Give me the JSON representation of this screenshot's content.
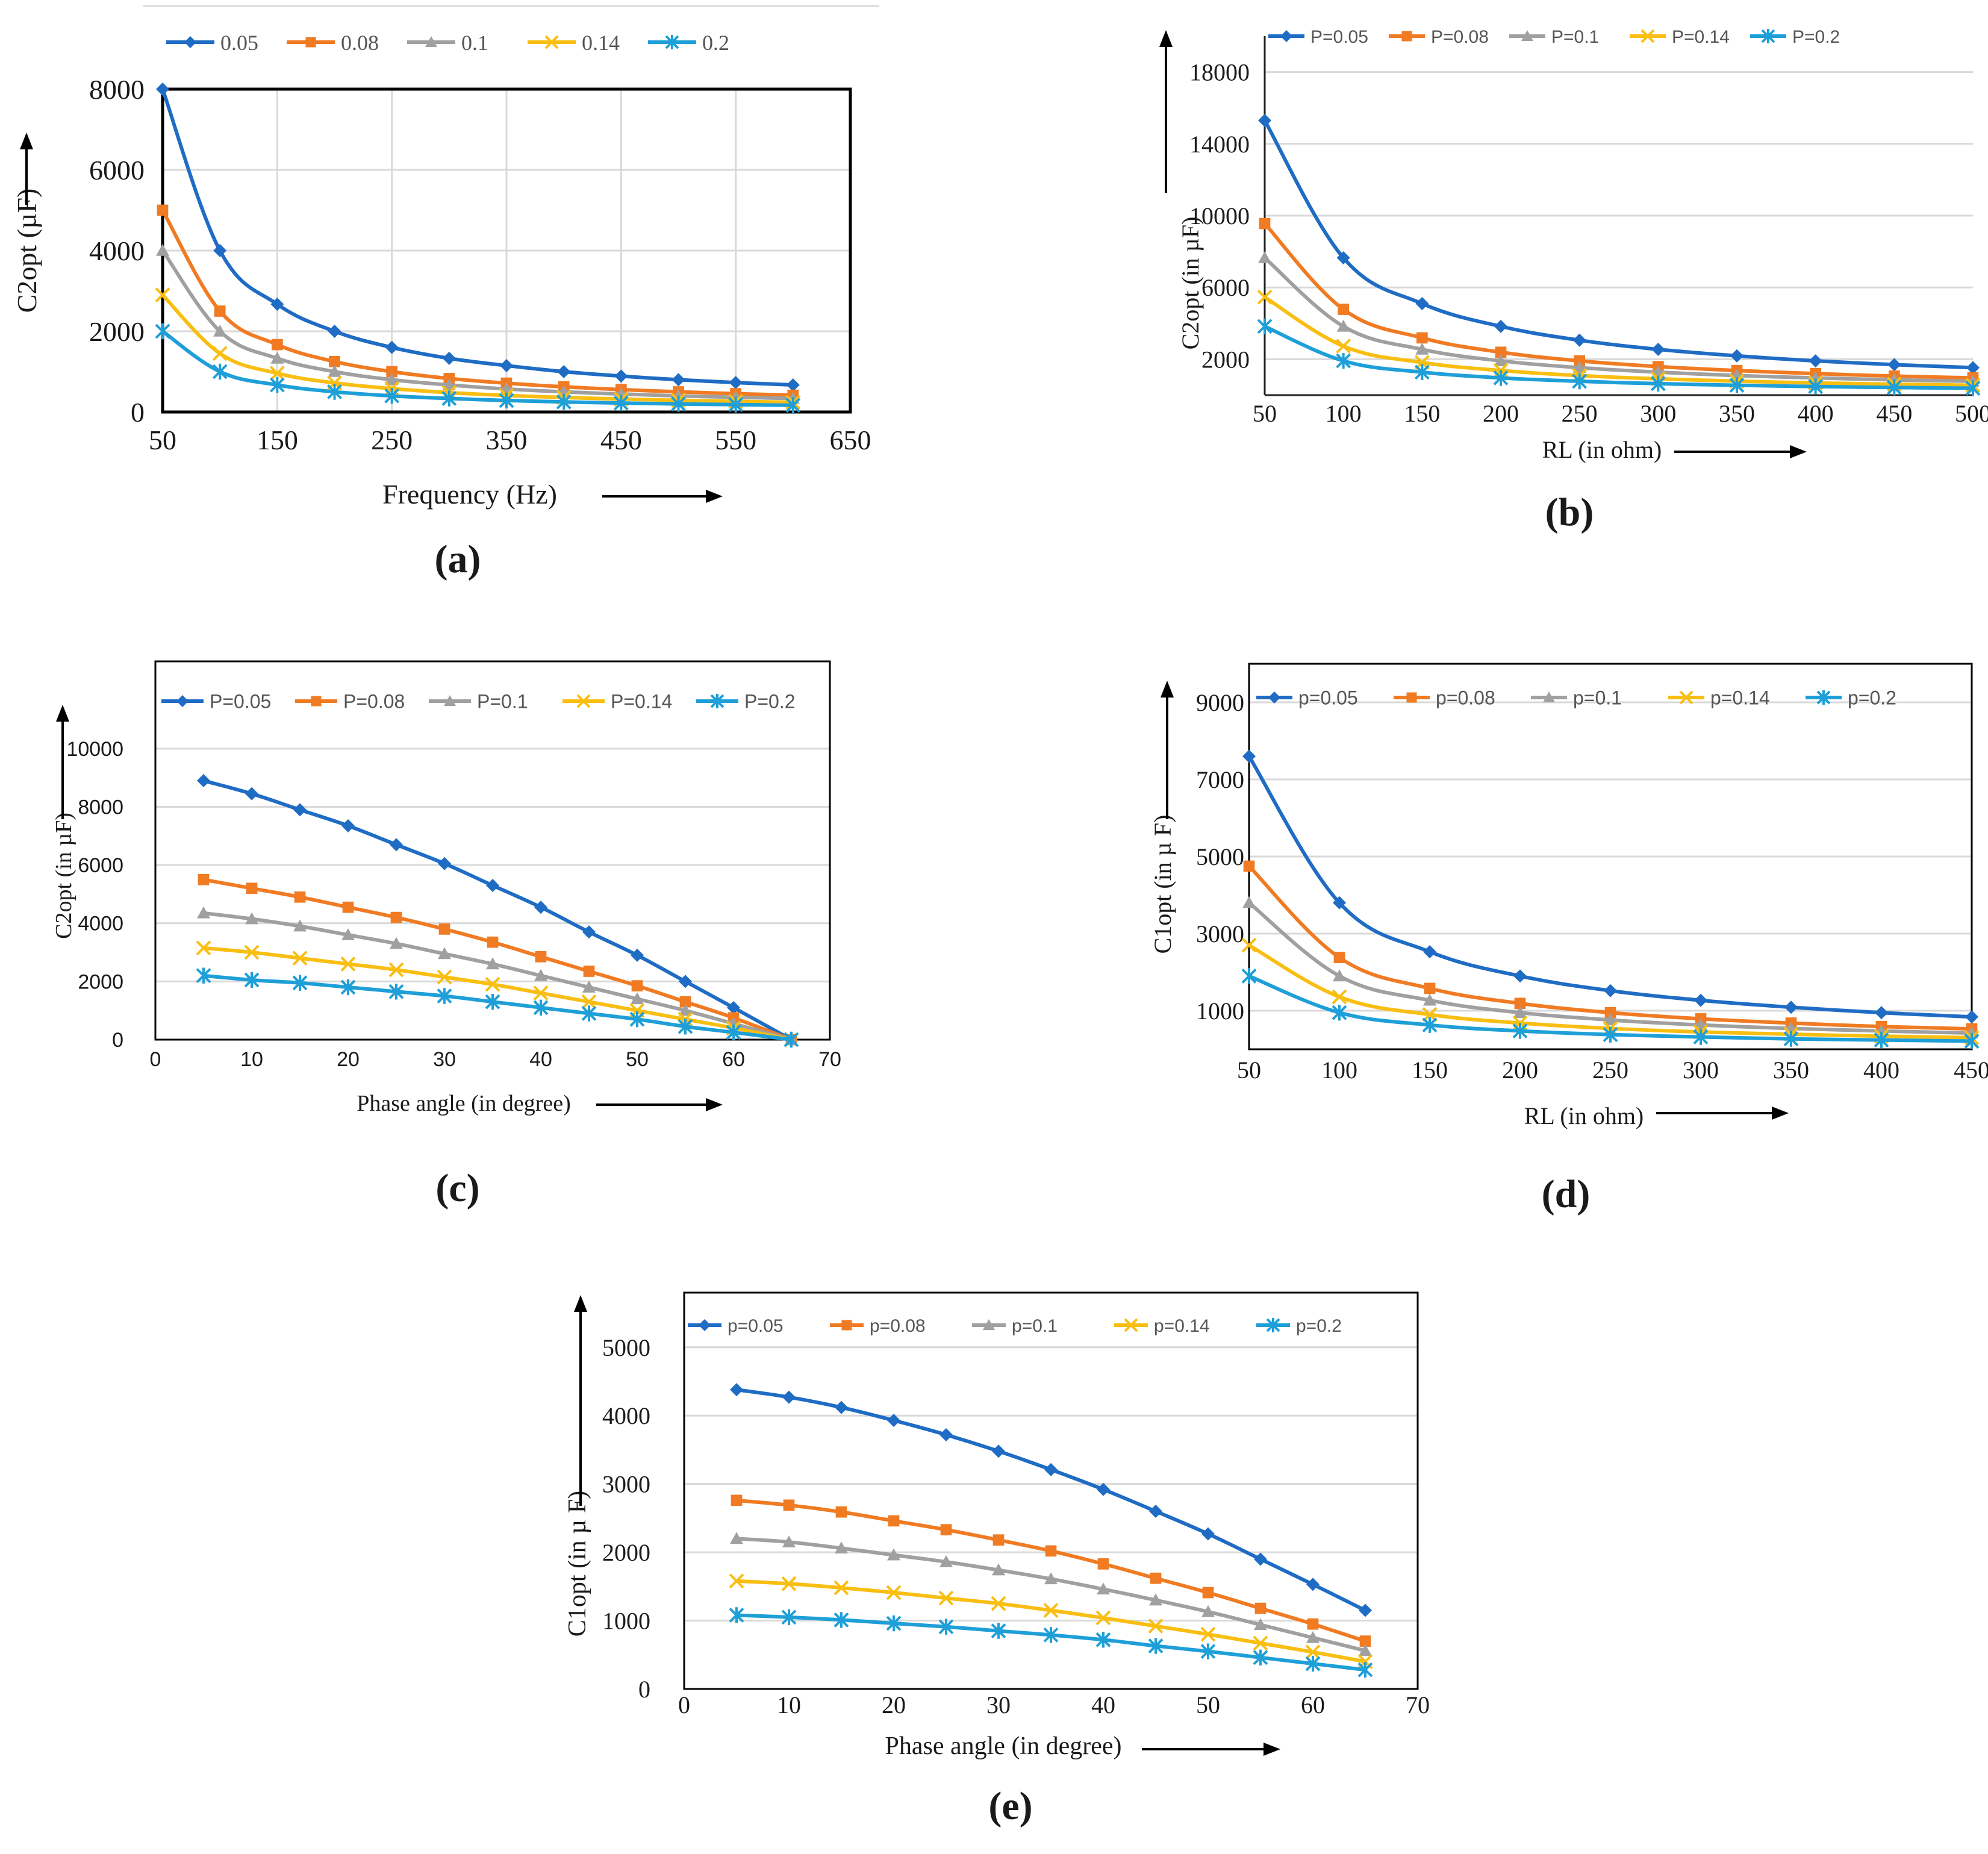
{
  "colors": {
    "s1": "#1F6CC4",
    "s2": "#F07B23",
    "s3": "#A0A0A0",
    "s4": "#F9BE12",
    "s5": "#1E9FD8",
    "grid": "#d9d9d9",
    "text": "#1a1a1a"
  },
  "chart_data": [
    {
      "id": "a",
      "type": "line",
      "panel_label": "(a)",
      "title": "",
      "xlabel": "Frequency (Hz)",
      "ylabel": "C2opt (µF)",
      "x_ticks": [
        "50",
        "150",
        "250",
        "350",
        "450",
        "550",
        "650"
      ],
      "y_ticks": [
        "0",
        "2000",
        "4000",
        "6000",
        "8000"
      ],
      "xlim": [
        50,
        650
      ],
      "ylim": [
        0,
        8000
      ],
      "legend_position": "top",
      "x": [
        50,
        100,
        150,
        200,
        250,
        300,
        350,
        400,
        450,
        500,
        550,
        600
      ],
      "series": [
        {
          "name": "0.05",
          "marker": "diamond",
          "values": [
            8000,
            4000,
            2670,
            2000,
            1600,
            1330,
            1150,
            1000,
            890,
            800,
            730,
            670
          ]
        },
        {
          "name": "0.08",
          "marker": "square",
          "values": [
            5000,
            2500,
            1670,
            1250,
            1000,
            830,
            715,
            625,
            555,
            500,
            455,
            415
          ]
        },
        {
          "name": "0.1",
          "marker": "triangle",
          "values": [
            4000,
            2000,
            1330,
            1000,
            800,
            670,
            570,
            500,
            445,
            400,
            365,
            335
          ]
        },
        {
          "name": "0.14",
          "marker": "x",
          "values": [
            2900,
            1450,
            960,
            720,
            580,
            480,
            410,
            360,
            320,
            290,
            265,
            240
          ]
        },
        {
          "name": "0.2",
          "marker": "star",
          "values": [
            2000,
            1000,
            670,
            500,
            400,
            335,
            285,
            250,
            222,
            200,
            182,
            167
          ]
        }
      ]
    },
    {
      "id": "b",
      "type": "line",
      "panel_label": "(b)",
      "title": "",
      "xlabel": "RL (in ohm)",
      "ylabel": "C2opt (in µF)",
      "x_ticks": [
        "50",
        "100",
        "150",
        "200",
        "250",
        "300",
        "350",
        "400",
        "450",
        "500"
      ],
      "y_ticks": [
        "2000",
        "6000",
        "10000",
        "14000",
        "18000"
      ],
      "xlim": [
        50,
        500
      ],
      "ylim": [
        0,
        20000
      ],
      "legend_position": "top",
      "x": [
        50,
        100,
        150,
        200,
        250,
        300,
        350,
        400,
        450,
        500
      ],
      "series": [
        {
          "name": "P=0.05",
          "marker": "diamond",
          "values": [
            15300,
            7650,
            5100,
            3830,
            3060,
            2550,
            2190,
            1910,
            1700,
            1530
          ]
        },
        {
          "name": "P=0.08",
          "marker": "square",
          "values": [
            9560,
            4780,
            3190,
            2390,
            1910,
            1590,
            1370,
            1200,
            1060,
            960
          ]
        },
        {
          "name": "P=0.1",
          "marker": "triangle",
          "values": [
            7650,
            3830,
            2550,
            1910,
            1530,
            1280,
            1090,
            960,
            850,
            770
          ]
        },
        {
          "name": "P=0.14",
          "marker": "x",
          "values": [
            5460,
            2730,
            1820,
            1370,
            1090,
            910,
            780,
            680,
            610,
            550
          ]
        },
        {
          "name": "P=0.2",
          "marker": "star",
          "values": [
            3830,
            1910,
            1280,
            960,
            770,
            640,
            550,
            480,
            425,
            385
          ]
        }
      ]
    },
    {
      "id": "c",
      "type": "line",
      "panel_label": "(c)",
      "title": "",
      "xlabel": "Phase angle (in degree)",
      "ylabel": "C2opt (in µF)",
      "x_ticks": [
        "0",
        "10",
        "20",
        "30",
        "40",
        "50",
        "60",
        "70"
      ],
      "y_ticks": [
        "0",
        "2000",
        "4000",
        "6000",
        "8000",
        "10000"
      ],
      "xlim": [
        0,
        70
      ],
      "ylim": [
        0,
        13000
      ],
      "legend_position": "top",
      "x": [
        5,
        10,
        15,
        20,
        25,
        30,
        35,
        40,
        45,
        50,
        55,
        60,
        66
      ],
      "series": [
        {
          "name": "P=0.05",
          "marker": "diamond",
          "values": [
            8900,
            8450,
            7900,
            7350,
            6700,
            6050,
            5300,
            4550,
            3700,
            2900,
            2000,
            1100,
            0
          ]
        },
        {
          "name": "P=0.08",
          "marker": "square",
          "values": [
            5500,
            5200,
            4900,
            4550,
            4200,
            3800,
            3350,
            2850,
            2350,
            1850,
            1300,
            750,
            0
          ]
        },
        {
          "name": "P=0.1",
          "marker": "triangle",
          "values": [
            4350,
            4150,
            3900,
            3600,
            3300,
            2950,
            2600,
            2200,
            1800,
            1400,
            1000,
            550,
            0
          ]
        },
        {
          "name": "P=0.14",
          "marker": "x",
          "values": [
            3150,
            3000,
            2800,
            2600,
            2400,
            2150,
            1900,
            1600,
            1300,
            1000,
            700,
            400,
            0
          ]
        },
        {
          "name": "P=0.2",
          "marker": "star",
          "values": [
            2200,
            2050,
            1950,
            1800,
            1650,
            1500,
            1300,
            1100,
            900,
            700,
            450,
            250,
            0
          ]
        }
      ]
    },
    {
      "id": "d",
      "type": "line",
      "panel_label": "(d)",
      "title": "",
      "xlabel": "RL (in ohm)",
      "ylabel": "C1opt (in µ F)",
      "x_ticks": [
        "50",
        "100",
        "150",
        "200",
        "250",
        "300",
        "350",
        "400",
        "450"
      ],
      "y_ticks": [
        "1000",
        "3000",
        "5000",
        "7000",
        "9000"
      ],
      "xlim": [
        50,
        450
      ],
      "ylim": [
        0,
        10000
      ],
      "legend_position": "top",
      "x": [
        50,
        100,
        150,
        200,
        250,
        300,
        350,
        400,
        450
      ],
      "series": [
        {
          "name": "p=0.05",
          "marker": "diamond",
          "values": [
            7600,
            3800,
            2530,
            1900,
            1520,
            1270,
            1090,
            950,
            840
          ]
        },
        {
          "name": "p=0.08",
          "marker": "square",
          "values": [
            4750,
            2380,
            1580,
            1190,
            950,
            790,
            680,
            590,
            530
          ]
        },
        {
          "name": "p=0.1",
          "marker": "triangle",
          "values": [
            3800,
            1900,
            1270,
            950,
            760,
            630,
            540,
            475,
            420
          ]
        },
        {
          "name": "p=0.14",
          "marker": "x",
          "values": [
            2700,
            1360,
            900,
            680,
            540,
            450,
            390,
            340,
            300
          ]
        },
        {
          "name": "p=0.2",
          "marker": "star",
          "values": [
            1900,
            950,
            630,
            475,
            380,
            320,
            270,
            240,
            210
          ]
        }
      ]
    },
    {
      "id": "e",
      "type": "line",
      "panel_label": "(e)",
      "title": "",
      "xlabel": "Phase angle (in degree)",
      "ylabel": "C1opt (in µ F)",
      "x_ticks": [
        "0",
        "10",
        "20",
        "30",
        "40",
        "50",
        "60",
        "70"
      ],
      "y_ticks": [
        "0",
        "1000",
        "2000",
        "3000",
        "4000",
        "5000"
      ],
      "xlim": [
        0,
        70
      ],
      "ylim": [
        0,
        5800
      ],
      "legend_position": "top",
      "x": [
        5,
        10,
        15,
        20,
        25,
        30,
        35,
        40,
        45,
        50,
        55,
        60,
        65
      ],
      "series": [
        {
          "name": "p=0.05",
          "marker": "diamond",
          "values": [
            4380,
            4270,
            4120,
            3930,
            3720,
            3480,
            3210,
            2920,
            2600,
            2270,
            1900,
            1530,
            1150
          ]
        },
        {
          "name": "p=0.08",
          "marker": "square",
          "values": [
            2760,
            2690,
            2590,
            2460,
            2330,
            2180,
            2020,
            1830,
            1620,
            1410,
            1180,
            950,
            700
          ]
        },
        {
          "name": "p=0.1",
          "marker": "triangle",
          "values": [
            2200,
            2150,
            2060,
            1960,
            1860,
            1740,
            1610,
            1460,
            1300,
            1130,
            940,
            750,
            560
          ]
        },
        {
          "name": "p=0.14",
          "marker": "x",
          "values": [
            1580,
            1540,
            1480,
            1410,
            1330,
            1250,
            1150,
            1040,
            920,
            800,
            670,
            540,
            400
          ]
        },
        {
          "name": "p=0.2",
          "marker": "star",
          "values": [
            1080,
            1050,
            1010,
            960,
            910,
            850,
            790,
            720,
            630,
            550,
            460,
            370,
            280
          ]
        }
      ]
    }
  ]
}
